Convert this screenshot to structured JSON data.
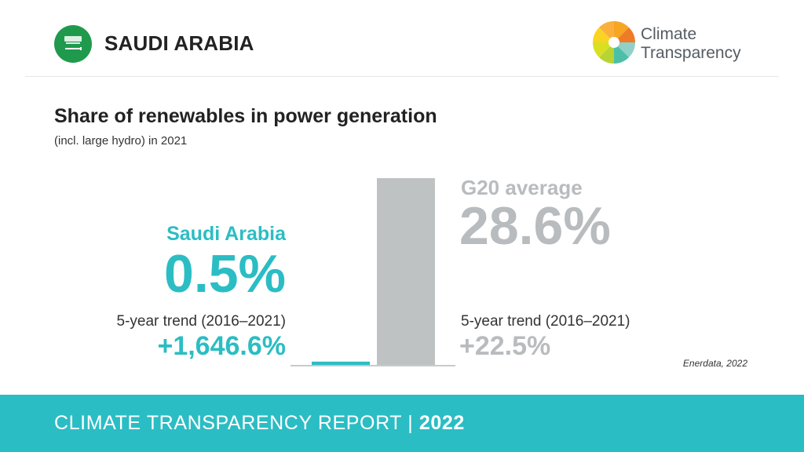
{
  "header": {
    "country": "SAUDI ARABIA",
    "logo_line1": "Climate",
    "logo_line2": "Transparency",
    "flag_icon": "saudi-arabia-flag-icon",
    "logo_icon": "climate-transparency-logo-icon"
  },
  "chart_data": {
    "type": "bar",
    "title": "Share of renewables in power generation",
    "subtitle": "(incl. large hydro) in 2021",
    "categories": [
      "Saudi Arabia",
      "G20 average"
    ],
    "values": [
      0.5,
      28.6
    ],
    "unit": "%",
    "value_labels": [
      "0.5%",
      "28.6%"
    ],
    "trend_label": "5-year trend (2016–2021)",
    "trend_values": [
      "+1,646.6%",
      "+22.5%"
    ],
    "ylim": [
      0,
      28.6
    ],
    "colors": [
      "#2bbdc4",
      "#bfc2c3"
    ],
    "source": "Enerdata, 2022"
  },
  "footer": {
    "report": "CLIMATE TRANSPARENCY REPORT |",
    "year": "2022"
  }
}
